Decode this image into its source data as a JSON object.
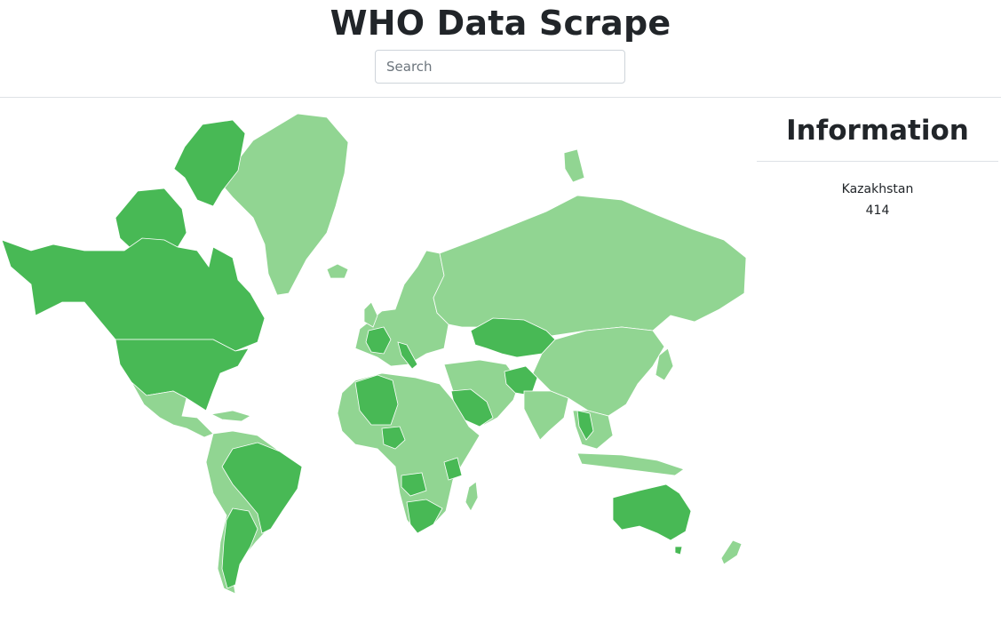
{
  "header": {
    "title": "WHO Data Scrape",
    "search_placeholder": "Search"
  },
  "info_panel": {
    "heading": "Information",
    "selected_country": "Kazakhstan",
    "selected_value": "414"
  },
  "map": {
    "colors": {
      "low": "#91d592",
      "high": "#48b955",
      "border": "#ffffff"
    },
    "highlighted_regions": [
      "Canada",
      "United States",
      "Alaska",
      "Brazil",
      "Argentina",
      "Chile",
      "Kazakhstan",
      "Afghanistan",
      "Saudi Arabia",
      "Algeria",
      "Nigeria",
      "Angola",
      "South Africa",
      "Tanzania",
      "Australia",
      "France",
      "Italy",
      "Thailand"
    ]
  }
}
